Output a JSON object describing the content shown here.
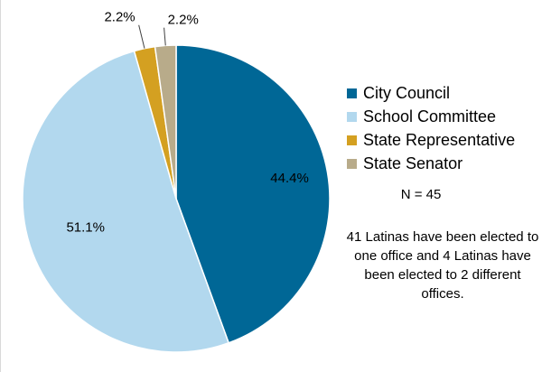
{
  "chart_data": {
    "type": "pie",
    "slices": [
      {
        "label": "City Council",
        "value": 44.4,
        "value_label": "44.4%",
        "color": "#006796"
      },
      {
        "label": "School Committee",
        "value": 51.1,
        "value_label": "51.1%",
        "color": "#b2d8ee"
      },
      {
        "label": "State Representative",
        "value": 2.2,
        "value_label": "2.2%",
        "color": "#d4a021"
      },
      {
        "label": "State Senator",
        "value": 2.2,
        "value_label": "2.2%",
        "color": "#b8ab8a"
      }
    ],
    "start_angle": "12 o'clock",
    "direction": "clockwise",
    "legend_position": "right",
    "annotations": {
      "n": "N = 45",
      "note": "41 Latinas have been elected to one office and 4 Latinas have been elected to 2 different offices."
    }
  }
}
